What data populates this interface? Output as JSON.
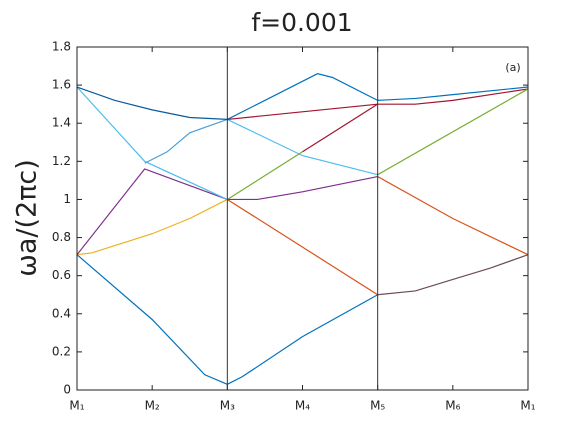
{
  "chart_data": {
    "type": "line",
    "title": "f=0.001",
    "y_label": "ωa/(2πc)",
    "annotation": "(a)",
    "xlim": [
      0,
      6
    ],
    "ylim": [
      0,
      1.8
    ],
    "xticks": [
      {
        "value": 0,
        "label": "M₁"
      },
      {
        "value": 1,
        "label": "M₂"
      },
      {
        "value": 2,
        "label": "M₃"
      },
      {
        "value": 3,
        "label": "M₄"
      },
      {
        "value": 4,
        "label": "M₅"
      },
      {
        "value": 5,
        "label": "M₆"
      },
      {
        "value": 6,
        "label": "M₁"
      }
    ],
    "yticks": [
      0,
      0.2,
      0.4,
      0.6,
      0.8,
      1,
      1.2,
      1.4,
      1.6,
      1.8
    ],
    "vlines": [
      2,
      4
    ],
    "series": [
      {
        "color": "#0072bd",
        "x": [
          0,
          1,
          1.7,
          2,
          2.2,
          3,
          4
        ],
        "values": [
          0.71,
          0.37,
          0.08,
          0.03,
          0.07,
          0.28,
          0.5
        ]
      },
      {
        "color": "#6b4b5a",
        "x": [
          4,
          4.5,
          5,
          5.5,
          6
        ],
        "values": [
          0.5,
          0.52,
          0.58,
          0.64,
          0.71
        ]
      },
      {
        "color": "#edb120",
        "x": [
          0,
          0.2,
          1,
          1.5,
          2
        ],
        "values": [
          0.71,
          0.72,
          0.82,
          0.9,
          1.0
        ]
      },
      {
        "color": "#7e2f8e",
        "x": [
          0,
          0.9,
          2
        ],
        "values": [
          0.71,
          1.16,
          1.0
        ]
      },
      {
        "color": "#4dbeee",
        "x": [
          0,
          0.9,
          2
        ],
        "values": [
          1.59,
          1.2,
          1.0
        ]
      },
      {
        "color": "#4a9fd8",
        "x": [
          0.9,
          1.2,
          1.5,
          2
        ],
        "values": [
          1.19,
          1.25,
          1.35,
          1.42
        ]
      },
      {
        "color": "#0b5a9c",
        "x": [
          0,
          0.5,
          1,
          1.5,
          2
        ],
        "values": [
          1.59,
          1.52,
          1.47,
          1.43,
          1.42
        ]
      },
      {
        "color": "#0072bd",
        "x": [
          2,
          3.2,
          3.4,
          4
        ],
        "values": [
          1.42,
          1.66,
          1.64,
          1.52
        ]
      },
      {
        "color": "#4dbeee",
        "x": [
          2,
          3,
          4
        ],
        "values": [
          1.42,
          1.23,
          1.13
        ]
      },
      {
        "color": "#77ac30",
        "x": [
          2,
          3
        ],
        "values": [
          1.0,
          1.25
        ]
      },
      {
        "color": "#a2142f",
        "x": [
          2,
          4
        ],
        "values": [
          1.42,
          1.5
        ]
      },
      {
        "color": "#a2142f",
        "x": [
          3,
          4
        ],
        "values": [
          1.25,
          1.5
        ]
      },
      {
        "color": "#7e2f8e",
        "x": [
          2,
          2.4,
          3,
          4
        ],
        "values": [
          1.0,
          1.0,
          1.04,
          1.12
        ]
      },
      {
        "color": "#d95319",
        "x": [
          2,
          4
        ],
        "values": [
          1.0,
          0.5
        ]
      },
      {
        "color": "#d95319",
        "x": [
          4,
          5,
          6
        ],
        "values": [
          1.12,
          0.9,
          0.71
        ]
      },
      {
        "color": "#a2142f",
        "x": [
          4,
          4.5,
          5,
          6
        ],
        "values": [
          1.5,
          1.5,
          1.52,
          1.58
        ]
      },
      {
        "color": "#0072bd",
        "x": [
          4,
          4.5,
          5,
          6
        ],
        "values": [
          1.52,
          1.53,
          1.55,
          1.59
        ]
      },
      {
        "color": "#77ac30",
        "x": [
          4,
          6
        ],
        "values": [
          1.13,
          1.58
        ]
      }
    ]
  }
}
